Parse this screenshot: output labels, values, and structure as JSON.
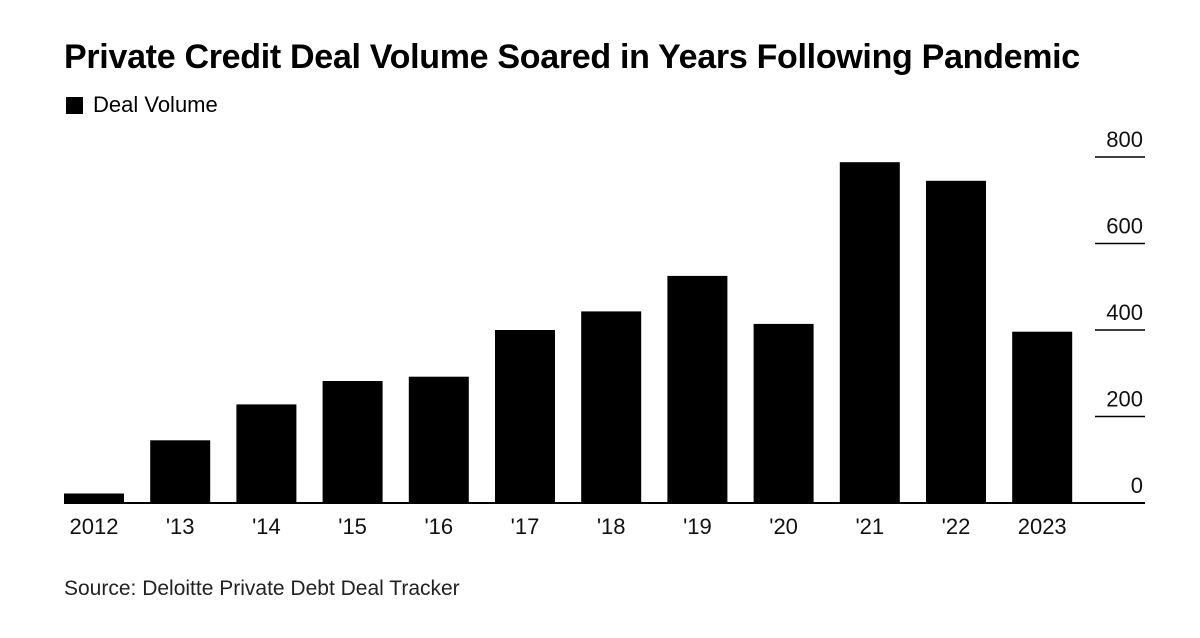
{
  "chart_data": {
    "type": "bar",
    "title": "Private Credit Deal Volume Soared in Years Following Pandemic",
    "legend": {
      "label": "Deal Volume",
      "placement": "top-left",
      "color": "#000000"
    },
    "categories": [
      "2012",
      "'13",
      "'14",
      "'15",
      "'16",
      "'17",
      "'18",
      "'19",
      "'20",
      "'21",
      "'22",
      "2023"
    ],
    "series": [
      {
        "name": "Deal Volume",
        "color": "#000000",
        "values": [
          22,
          145,
          228,
          282,
          292,
          400,
          443,
          525,
          414,
          788,
          745,
          396
        ]
      }
    ],
    "y_axis": {
      "position": "right",
      "ticks": [
        "0",
        "200",
        "400",
        "600",
        "800"
      ],
      "ylim": [
        0,
        850
      ]
    },
    "grid": false,
    "source": "Source: Deloitte Private Debt Deal Tracker"
  }
}
